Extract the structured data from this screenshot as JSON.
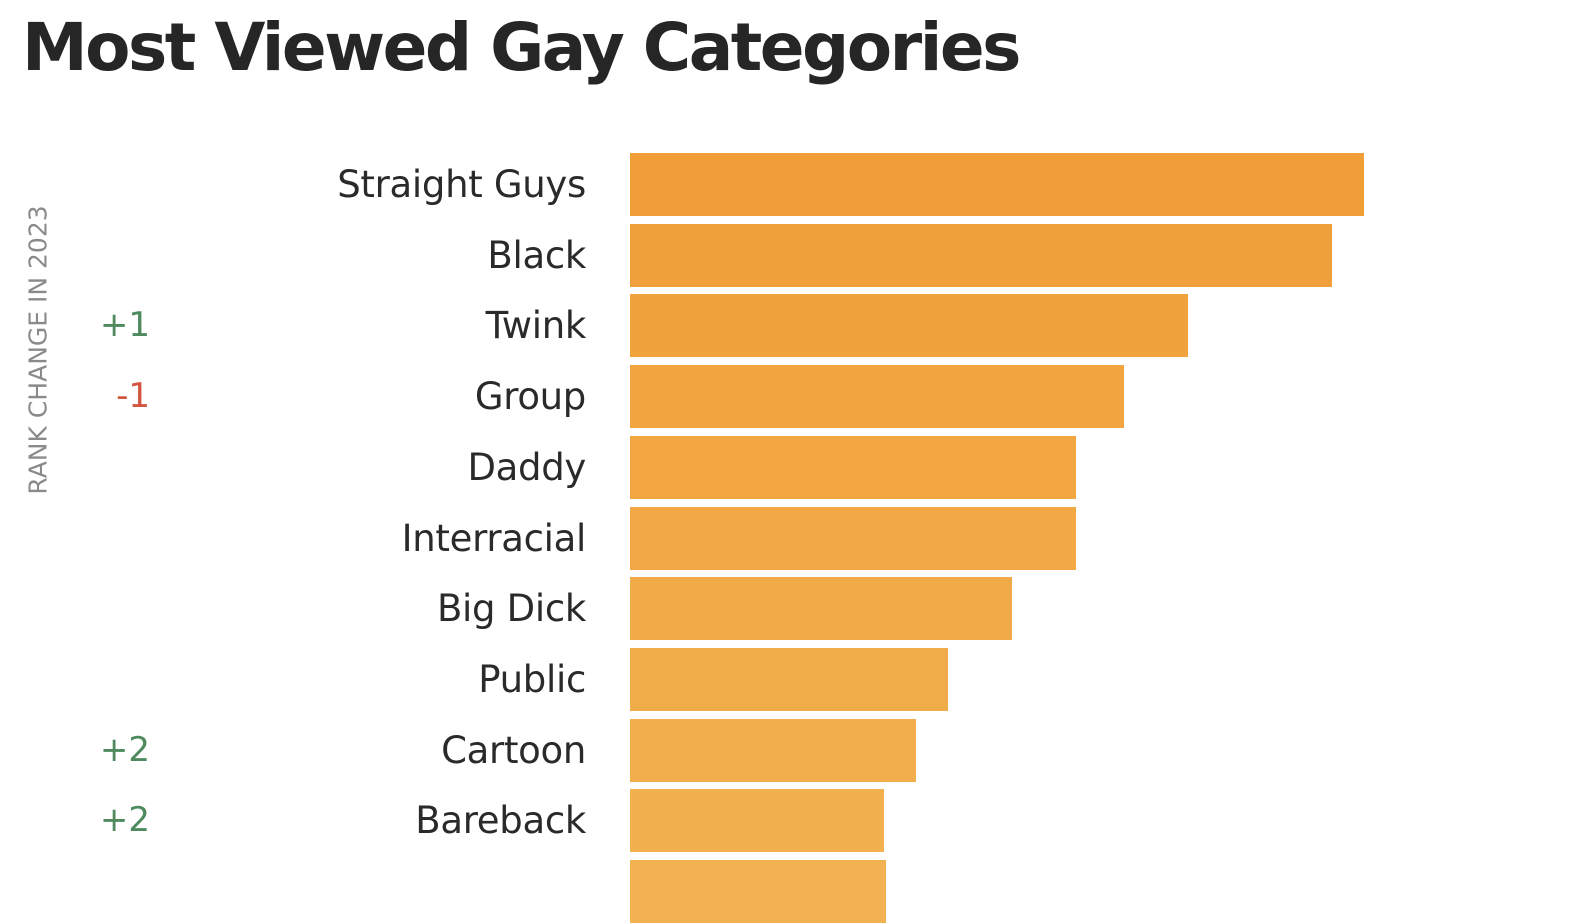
{
  "title": "Most Viewed Gay Categories",
  "rank_axis_label": "RANK CHANGE IN 2023",
  "colors": {
    "bar_top": "#f09e38",
    "bar_bottom": "#f2b252",
    "rank_up": "#4e8a5e",
    "rank_down": "#d2553f",
    "title": "#262626",
    "label": "#2a2a2a",
    "axis_label": "#8a8a8a"
  },
  "rows": [
    {
      "label": "Straight Guys",
      "rank_change": "",
      "value": 100.0
    },
    {
      "label": "Black",
      "rank_change": "",
      "value": 95.6
    },
    {
      "label": "Twink",
      "rank_change": "+1",
      "value": 76.0
    },
    {
      "label": "Group",
      "rank_change": "-1",
      "value": 67.3
    },
    {
      "label": "Daddy",
      "rank_change": "",
      "value": 60.8
    },
    {
      "label": "Interracial",
      "rank_change": "",
      "value": 60.8
    },
    {
      "label": "Big Dick",
      "rank_change": "",
      "value": 52.0
    },
    {
      "label": "Public",
      "rank_change": "",
      "value": 43.3
    },
    {
      "label": "Cartoon",
      "rank_change": "+2",
      "value": 39.0
    },
    {
      "label": "Bareback",
      "rank_change": "+2",
      "value": 34.6
    },
    {
      "label": "",
      "rank_change": "",
      "value": 34.9
    }
  ],
  "chart_data": {
    "type": "bar",
    "orientation": "horizontal",
    "title": "Most Viewed Gay Categories",
    "xlabel": "",
    "ylabel": "",
    "side_annotation_label": "RANK CHANGE IN 2023",
    "categories": [
      "Straight Guys",
      "Black",
      "Twink",
      "Group",
      "Daddy",
      "Interracial",
      "Big Dick",
      "Public",
      "Cartoon",
      "Bareback",
      "(cut off)"
    ],
    "values": [
      100.0,
      95.6,
      76.0,
      67.3,
      60.8,
      60.8,
      52.0,
      43.3,
      39.0,
      34.6,
      34.9
    ],
    "value_units": "relative bar length (Straight Guys = 100); no value axis shown",
    "rank_change_2023": [
      "",
      "",
      "+1",
      "-1",
      "",
      "",
      "",
      "",
      "+2",
      "+2",
      ""
    ],
    "grid": false,
    "legend": null,
    "xlim": [
      0,
      100
    ]
  }
}
